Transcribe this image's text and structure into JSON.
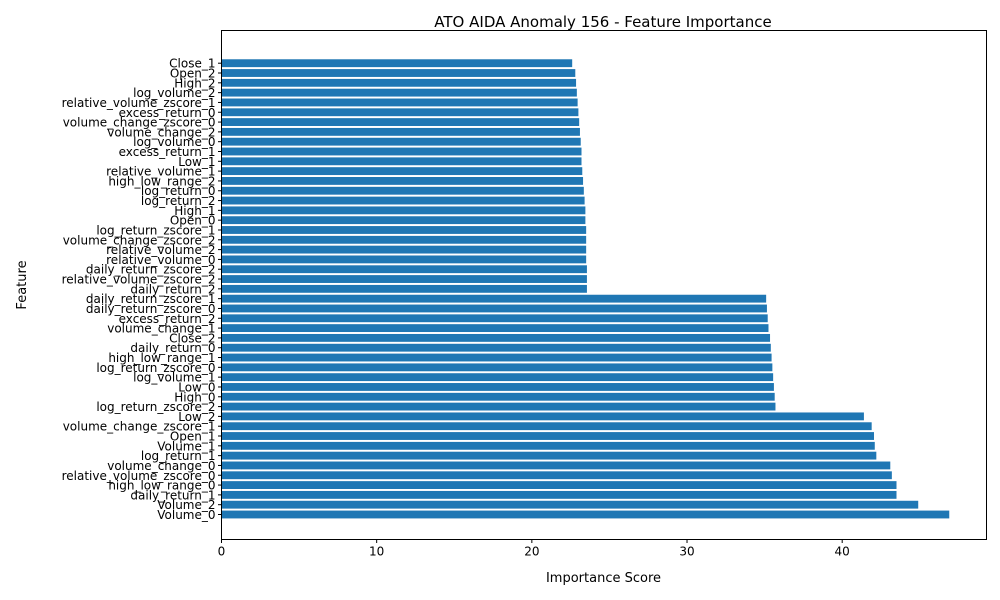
{
  "chart_data": {
    "type": "bar",
    "orientation": "horizontal",
    "title": "ATO AIDA Anomaly 156 - Feature Importance",
    "xlabel": "Importance Score",
    "ylabel": "Feature",
    "xlim": [
      0,
      49.3
    ],
    "xticks": [
      0,
      10,
      20,
      30,
      40
    ],
    "bar_color": "#1f77b4",
    "grid": false,
    "categories": [
      "Close_1",
      "Open_2",
      "High_2",
      "log_volume_2",
      "relative_volume_zscore_1",
      "excess_return_0",
      "volume_change_zscore_0",
      "volume_change_2",
      "log_volume_0",
      "excess_return_1",
      "Low_1",
      "relative_volume_1",
      "high_low_range_2",
      "log_return_0",
      "log_return_2",
      "High_1",
      "Open_0",
      "log_return_zscore_1",
      "volume_change_zscore_2",
      "relative_volume_2",
      "relative_volume_0",
      "daily_return_zscore_2",
      "relative_volume_zscore_2",
      "daily_return_2",
      "daily_return_zscore_1",
      "daily_return_zscore_0",
      "excess_return_2",
      "volume_change_1",
      "Close_2",
      "daily_return_0",
      "high_low_range_1",
      "log_return_zscore_0",
      "log_volume_1",
      "Low_0",
      "High_0",
      "log_return_zscore_2",
      "Low_2",
      "volume_change_zscore_1",
      "Open_1",
      "Volume_1",
      "log_return_1",
      "volume_change_0",
      "relative_volume_zscore_0",
      "high_low_range_0",
      "daily_return_1",
      "Volume_2",
      "Volume_0"
    ],
    "values": [
      22.6,
      22.8,
      22.85,
      22.9,
      22.95,
      23.0,
      23.05,
      23.1,
      23.15,
      23.2,
      23.2,
      23.25,
      23.3,
      23.35,
      23.4,
      23.45,
      23.45,
      23.5,
      23.5,
      23.5,
      23.5,
      23.55,
      23.55,
      23.55,
      35.1,
      35.15,
      35.2,
      35.25,
      35.35,
      35.4,
      35.45,
      35.5,
      35.55,
      35.6,
      35.65,
      35.7,
      41.4,
      41.9,
      42.05,
      42.1,
      42.2,
      43.1,
      43.2,
      43.5,
      43.5,
      44.9,
      46.9
    ]
  }
}
